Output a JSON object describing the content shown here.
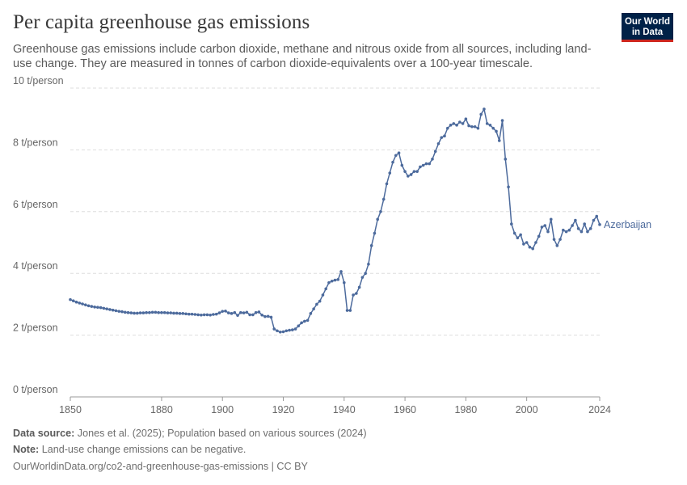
{
  "title": "Per capita greenhouse gas emissions",
  "subtitle": "Greenhouse gas emissions include carbon dioxide, methane and nitrous oxide from all sources, including land-use change. They are measured in tonnes of carbon dioxide-equivalents over a 100-year timescale.",
  "logo": {
    "line1": "Our World",
    "line2": "in Data"
  },
  "footer": {
    "source_label": "Data source:",
    "source_text": "Jones et al. (2025); Population based on various sources (2024)",
    "note_label": "Note:",
    "note_text": "Land-use change emissions can be negative.",
    "url": "OurWorldinData.org/co2-and-greenhouse-gas-emissions | CC BY"
  },
  "colors": {
    "series": "#4c6a9c",
    "grid": "#dddddd",
    "axis": "#666666",
    "logo_bg": "#002147",
    "logo_accent": "#ce261e"
  },
  "chart_data": {
    "type": "line",
    "title": "Per capita greenhouse gas emissions",
    "xlabel": "",
    "ylabel": "",
    "xlim": [
      1850,
      2024
    ],
    "ylim": [
      0,
      10
    ],
    "grid": "horizontal dashed",
    "x_ticks": [
      {
        "value": 1850,
        "label": "1850"
      },
      {
        "value": 1880,
        "label": "1880"
      },
      {
        "value": 1900,
        "label": "1900"
      },
      {
        "value": 1920,
        "label": "1920"
      },
      {
        "value": 1940,
        "label": "1940"
      },
      {
        "value": 1960,
        "label": "1960"
      },
      {
        "value": 1980,
        "label": "1980"
      },
      {
        "value": 2000,
        "label": "2000"
      },
      {
        "value": 2024,
        "label": "2024"
      }
    ],
    "y_ticks": [
      {
        "value": 0,
        "label": "0 t/person"
      },
      {
        "value": 2,
        "label": "2 t/person"
      },
      {
        "value": 4,
        "label": "4 t/person"
      },
      {
        "value": 6,
        "label": "6 t/person"
      },
      {
        "value": 8,
        "label": "8 t/person"
      },
      {
        "value": 10,
        "label": "10 t/person"
      }
    ],
    "series": [
      {
        "name": "Azerbaijan",
        "x": [
          1850,
          1851,
          1852,
          1853,
          1854,
          1855,
          1856,
          1857,
          1858,
          1859,
          1860,
          1861,
          1862,
          1863,
          1864,
          1865,
          1866,
          1867,
          1868,
          1869,
          1870,
          1871,
          1872,
          1873,
          1874,
          1875,
          1876,
          1877,
          1878,
          1879,
          1880,
          1881,
          1882,
          1883,
          1884,
          1885,
          1886,
          1887,
          1888,
          1889,
          1890,
          1891,
          1892,
          1893,
          1894,
          1895,
          1896,
          1897,
          1898,
          1899,
          1900,
          1901,
          1902,
          1903,
          1904,
          1905,
          1906,
          1907,
          1908,
          1909,
          1910,
          1911,
          1912,
          1913,
          1914,
          1915,
          1916,
          1917,
          1918,
          1919,
          1920,
          1921,
          1922,
          1923,
          1924,
          1925,
          1926,
          1927,
          1928,
          1929,
          1930,
          1931,
          1932,
          1933,
          1934,
          1935,
          1936,
          1937,
          1938,
          1939,
          1940,
          1941,
          1942,
          1943,
          1944,
          1945,
          1946,
          1947,
          1948,
          1949,
          1950,
          1951,
          1952,
          1953,
          1954,
          1955,
          1956,
          1957,
          1958,
          1959,
          1960,
          1961,
          1962,
          1963,
          1964,
          1965,
          1966,
          1967,
          1968,
          1969,
          1970,
          1971,
          1972,
          1973,
          1974,
          1975,
          1976,
          1977,
          1978,
          1979,
          1980,
          1981,
          1982,
          1983,
          1984,
          1985,
          1986,
          1987,
          1988,
          1989,
          1990,
          1991,
          1992,
          1993,
          1994,
          1995,
          1996,
          1997,
          1998,
          1999,
          2000,
          2001,
          2002,
          2003,
          2004,
          2005,
          2006,
          2007,
          2008,
          2009,
          2010,
          2011,
          2012,
          2013,
          2014,
          2015,
          2016,
          2017,
          2018,
          2019,
          2020,
          2021,
          2022,
          2023,
          2024
        ],
        "y": [
          3.15,
          3.11,
          3.07,
          3.04,
          3.01,
          2.98,
          2.95,
          2.93,
          2.91,
          2.9,
          2.89,
          2.87,
          2.85,
          2.83,
          2.81,
          2.79,
          2.77,
          2.76,
          2.74,
          2.73,
          2.72,
          2.71,
          2.71,
          2.72,
          2.72,
          2.73,
          2.73,
          2.74,
          2.74,
          2.73,
          2.73,
          2.73,
          2.72,
          2.72,
          2.71,
          2.71,
          2.7,
          2.7,
          2.69,
          2.68,
          2.68,
          2.67,
          2.66,
          2.65,
          2.66,
          2.66,
          2.65,
          2.67,
          2.68,
          2.72,
          2.77,
          2.78,
          2.72,
          2.7,
          2.73,
          2.64,
          2.73,
          2.72,
          2.74,
          2.66,
          2.66,
          2.73,
          2.75,
          2.65,
          2.6,
          2.61,
          2.58,
          2.2,
          2.14,
          2.1,
          2.11,
          2.14,
          2.16,
          2.17,
          2.2,
          2.3,
          2.4,
          2.45,
          2.48,
          2.7,
          2.85,
          3.0,
          3.1,
          3.3,
          3.5,
          3.7,
          3.75,
          3.78,
          3.8,
          4.06,
          3.7,
          2.8,
          2.8,
          3.3,
          3.35,
          3.55,
          3.87,
          4.0,
          4.3,
          4.9,
          5.3,
          5.75,
          6.0,
          6.4,
          6.9,
          7.25,
          7.6,
          7.82,
          7.9,
          7.5,
          7.3,
          7.15,
          7.2,
          7.3,
          7.3,
          7.45,
          7.5,
          7.55,
          7.55,
          7.7,
          7.95,
          8.2,
          8.4,
          8.45,
          8.7,
          8.8,
          8.85,
          8.8,
          8.9,
          8.85,
          9.0,
          8.78,
          8.75,
          8.75,
          8.7,
          9.15,
          9.32,
          8.85,
          8.8,
          8.7,
          8.6,
          8.3,
          8.95,
          7.7,
          6.8,
          5.6,
          5.3,
          5.15,
          5.25,
          4.95,
          5.0,
          4.85,
          4.8,
          5.0,
          5.2,
          5.5,
          5.55,
          5.35,
          5.75,
          5.1,
          4.9,
          5.1,
          5.4,
          5.35,
          5.4,
          5.55,
          5.72,
          5.45,
          5.35,
          5.6,
          5.35,
          5.45,
          5.72,
          5.85,
          5.58
        ]
      }
    ]
  }
}
